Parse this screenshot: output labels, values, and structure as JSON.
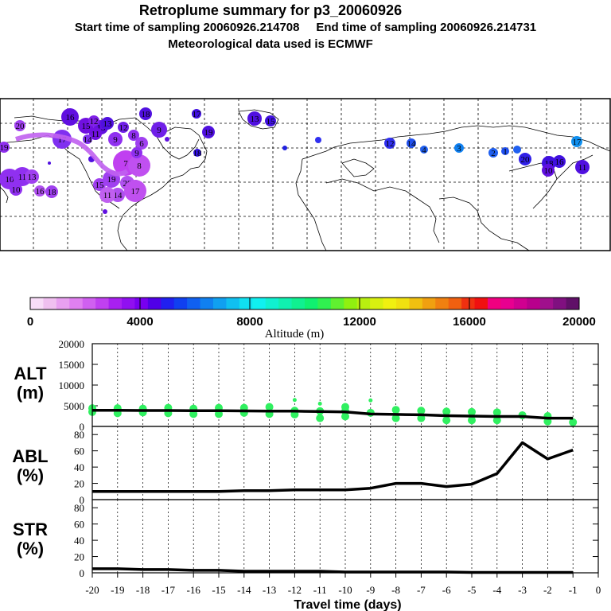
{
  "header": {
    "line1": "Retroplume summary for p3_20060926",
    "line2": "Start time of sampling 20060926.214708     End time of sampling 20060926.214731",
    "line3": "Meteorological data used is ECMWF"
  },
  "colorbar": {
    "ticks": [
      "0",
      "4000",
      "8000",
      "12000",
      "16000",
      "20000"
    ],
    "label": "Altitude (m)",
    "colors": [
      "#f8dcf8",
      "#f0c0f0",
      "#e8a0f0",
      "#e080f0",
      "#d060f0",
      "#c040f0",
      "#a820f0",
      "#9010f0",
      "#7800f0",
      "#5000e8",
      "#2020f0",
      "#1040f0",
      "#1060f0",
      "#1080f0",
      "#10a0f0",
      "#10c0f0",
      "#10e0f0",
      "#10f0f0",
      "#10f0d0",
      "#10f0b0",
      "#10f090",
      "#10f070",
      "#30f050",
      "#60f030",
      "#90f010",
      "#b8f010",
      "#d8f010",
      "#f0f010",
      "#f0e010",
      "#f0c010",
      "#f0a010",
      "#f08010",
      "#f06010",
      "#f03010",
      "#f01010",
      "#f00080",
      "#e80090",
      "#d00090",
      "#b8008c",
      "#a0108c",
      "#801080",
      "#601068"
    ]
  },
  "map_labels": [
    "16",
    "15",
    "13",
    "12",
    "13",
    "11",
    "8",
    "12",
    "9",
    "20",
    "17",
    "14",
    "9",
    "7",
    "8",
    "6",
    "9",
    "10",
    "11",
    "13",
    "18",
    "16",
    "19",
    "19",
    "20",
    "15",
    "17",
    "14",
    "10",
    "11",
    "18",
    "17",
    "19",
    "18",
    "13",
    "15",
    "12",
    "14",
    "4",
    "3",
    "2",
    "1",
    "20",
    "18",
    "16",
    "11",
    "17",
    "10",
    "11",
    "17"
  ],
  "chart_data": [
    {
      "type": "line",
      "panel": "ALT",
      "ylabel": "ALT\n(m)",
      "ylim": [
        0,
        20000
      ],
      "yticks": [
        0,
        5000,
        10000,
        15000,
        20000
      ],
      "x": [
        -20,
        -19,
        -18,
        -17,
        -16,
        -15,
        -14,
        -13,
        -12,
        -11,
        -10,
        -9,
        -8,
        -7,
        -6,
        -5,
        -4,
        -3,
        -2,
        -1
      ],
      "values": [
        3900,
        3900,
        3850,
        3850,
        3800,
        3800,
        3750,
        3700,
        3700,
        3600,
        3500,
        3000,
        2900,
        2800,
        2600,
        2500,
        2400,
        2400,
        2000,
        2000
      ],
      "scatter": [
        {
          "x": -20,
          "y": 3500
        },
        {
          "x": -20,
          "y": 4400
        },
        {
          "x": -19,
          "y": 3200
        },
        {
          "x": -19,
          "y": 4400
        },
        {
          "x": -18,
          "y": 3400
        },
        {
          "x": -18,
          "y": 4300
        },
        {
          "x": -17,
          "y": 3200
        },
        {
          "x": -17,
          "y": 4500
        },
        {
          "x": -16,
          "y": 3000
        },
        {
          "x": -16,
          "y": 4300
        },
        {
          "x": -15,
          "y": 3000
        },
        {
          "x": -15,
          "y": 4500
        },
        {
          "x": -14,
          "y": 3300
        },
        {
          "x": -14,
          "y": 4500
        },
        {
          "x": -13,
          "y": 3000
        },
        {
          "x": -13,
          "y": 4700
        },
        {
          "x": -12,
          "y": 2900
        },
        {
          "x": -12,
          "y": 3800
        },
        {
          "x": -12,
          "y": 6400
        },
        {
          "x": -11,
          "y": 2000
        },
        {
          "x": -11,
          "y": 3700
        },
        {
          "x": -11,
          "y": 5500
        },
        {
          "x": -10,
          "y": 2400
        },
        {
          "x": -10,
          "y": 3700
        },
        {
          "x": -10,
          "y": 4700
        },
        {
          "x": -9,
          "y": 3300
        },
        {
          "x": -9,
          "y": 6300
        },
        {
          "x": -8,
          "y": 2000
        },
        {
          "x": -8,
          "y": 4000
        },
        {
          "x": -7,
          "y": 2000
        },
        {
          "x": -7,
          "y": 3800
        },
        {
          "x": -6,
          "y": 1500
        },
        {
          "x": -6,
          "y": 3600
        },
        {
          "x": -5,
          "y": 1500
        },
        {
          "x": -5,
          "y": 3500
        },
        {
          "x": -4,
          "y": 1500
        },
        {
          "x": -4,
          "y": 3400
        },
        {
          "x": -3,
          "y": 2700
        },
        {
          "x": -2,
          "y": 1200
        },
        {
          "x": -2,
          "y": 2500
        },
        {
          "x": -1,
          "y": 1000
        }
      ],
      "scatter_color": "#30f060"
    },
    {
      "type": "line",
      "panel": "ABL",
      "ylabel": "ABL\n(%)",
      "ylim": [
        0,
        90
      ],
      "yticks": [
        0,
        20,
        40,
        60,
        80
      ],
      "x": [
        -20,
        -19,
        -18,
        -17,
        -16,
        -15,
        -14,
        -13,
        -12,
        -11,
        -10,
        -9,
        -8,
        -7,
        -6,
        -5,
        -4,
        -3,
        -2,
        -1
      ],
      "values": [
        10,
        10,
        10,
        10,
        10,
        10,
        11,
        11,
        12,
        12,
        12,
        14,
        20,
        20,
        16,
        19,
        32,
        70,
        50,
        61
      ]
    },
    {
      "type": "line",
      "panel": "STR",
      "ylabel": "STR\n(%)",
      "ylim": [
        0,
        90
      ],
      "yticks": [
        0,
        20,
        40,
        60,
        80
      ],
      "x": [
        -20,
        -19,
        -18,
        -17,
        -16,
        -15,
        -14,
        -13,
        -12,
        -11,
        -10,
        -9,
        -8,
        -7,
        -6,
        -5,
        -4,
        -3,
        -2,
        -1
      ],
      "values": [
        5,
        5,
        4,
        4,
        3,
        3,
        2,
        2,
        2,
        2,
        1,
        1,
        1,
        1,
        1,
        0.5,
        0.5,
        0.5,
        0.5,
        0.5
      ]
    }
  ],
  "x_axis": {
    "ticks": [
      "-20",
      "-19",
      "-18",
      "-17",
      "-16",
      "-15",
      "-14",
      "-13",
      "-12",
      "-11",
      "-10",
      "-9",
      "-8",
      "-7",
      "-6",
      "-5",
      "-4",
      "-3",
      "-2",
      "-1",
      "0"
    ],
    "xlabel": "Travel time (days)",
    "xlim": [
      -20,
      0
    ]
  }
}
